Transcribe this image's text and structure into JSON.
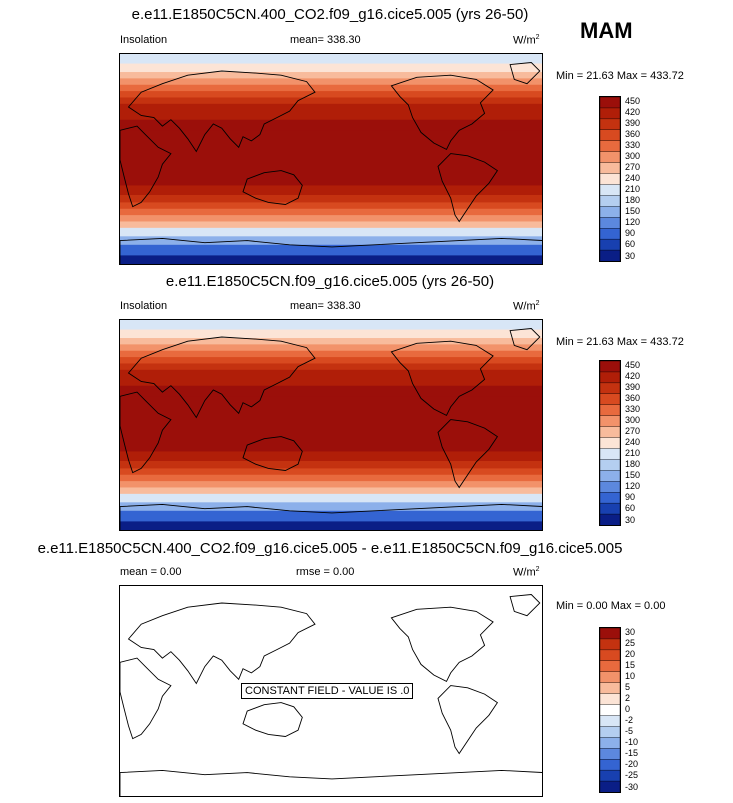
{
  "season": "MAM",
  "panels": [
    {
      "title": "e.e11.E1850C5CN.400_CO2.f09_g16.cice5.005 (yrs 26-50)",
      "left_label": "Insolation",
      "mean_label": "mean= 338.30",
      "rmse_label": "",
      "units": "W/m",
      "units_exp": "2",
      "minmax": "Min =  21.63 Max = 433.72",
      "levels": [
        "450",
        "420",
        "390",
        "360",
        "330",
        "300",
        "270",
        "240",
        "210",
        "180",
        "150",
        "120",
        "90",
        "60",
        "30"
      ]
    },
    {
      "title": "e.e11.E1850C5CN.f09_g16.cice5.005 (yrs 26-50)",
      "left_label": "Insolation",
      "mean_label": "mean= 338.30",
      "rmse_label": "",
      "units": "W/m",
      "units_exp": "2",
      "minmax": "Min =  21.63 Max = 433.72",
      "levels": [
        "450",
        "420",
        "390",
        "360",
        "330",
        "300",
        "270",
        "240",
        "210",
        "180",
        "150",
        "120",
        "90",
        "60",
        "30"
      ]
    },
    {
      "title": "e.e11.E1850C5CN.400_CO2.f09_g16.cice5.005 - e.e11.E1850C5CN.f09_g16.cice5.005",
      "left_label": "mean =   0.00",
      "mean_label": "",
      "rmse_label": "rmse =   0.00",
      "units": "W/m",
      "units_exp": "2",
      "minmax": "Min =  0.00 Max =   0.00",
      "levels": [
        "30",
        "25",
        "20",
        "15",
        "10",
        "5",
        "2",
        "0",
        "-2",
        "-5",
        "-10",
        "-15",
        "-20",
        "-25",
        "-30"
      ],
      "note": "CONSTANT FIELD - VALUE IS .0"
    }
  ],
  "colors": {
    "palette": [
      "#9b0f0a",
      "#b01e08",
      "#c43210",
      "#d84a20",
      "#e86a3e",
      "#f2926a",
      "#f8bb9c",
      "#fce4d6",
      "#d8e6f6",
      "#b4cef0",
      "#8cb0ea",
      "#5c88de",
      "#3464d2",
      "#1840b0",
      "#0a1e86"
    ],
    "diff_palette": [
      "#9b0f0a",
      "#c43210",
      "#d84a20",
      "#e86a3e",
      "#f2926a",
      "#f8bb9c",
      "#fce4d6",
      "#ffffff",
      "#d8e6f6",
      "#b4cef0",
      "#8cb0ea",
      "#5c88de",
      "#3464d2",
      "#1840b0",
      "#0a1e86"
    ]
  }
}
